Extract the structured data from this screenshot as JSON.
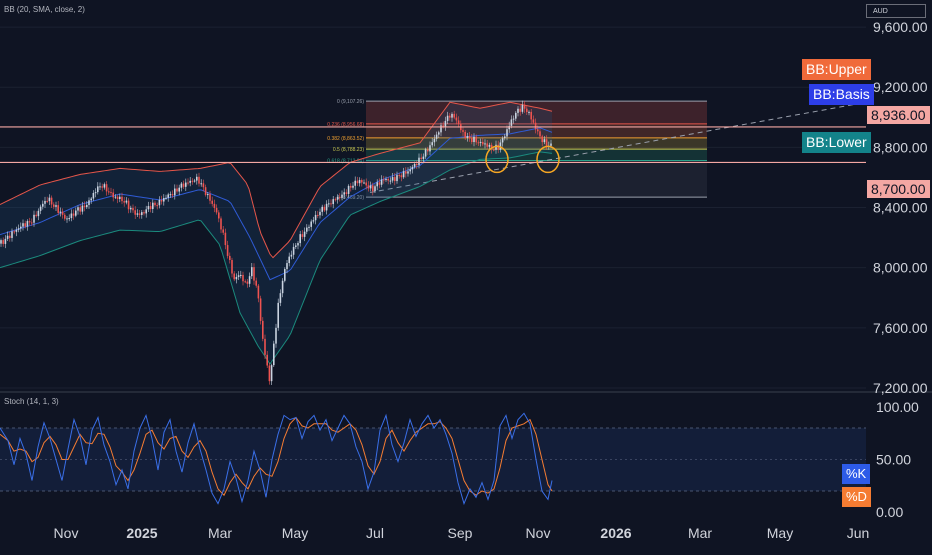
{
  "indicators": {
    "bb_label": "BB (20, SMA, close, 2)",
    "stoch_label": "Stoch (14, 1, 3)",
    "currency": "AUD"
  },
  "legend": {
    "upper": "BB:Upper",
    "basis": "BB:Basis",
    "lower": "BB:Lower",
    "k": "%K",
    "d": "%D"
  },
  "price_tags": {
    "level_high": "8,936.00",
    "level_low": "8,700.00"
  },
  "colors": {
    "background": "#0f1423",
    "upper_band": "#e5564a",
    "basis": "#2f5bd6",
    "lower_band": "#1b8a7d",
    "candle_up": "#c9d3e0",
    "candle_down": "#ef5350",
    "stoch_k": "#3a6fe8",
    "stoch_d": "#f57c32",
    "level_line": "#f4a7a3",
    "highlight_circle": "#f5a623"
  },
  "chart_data": {
    "type": "candlestick",
    "price_axis": {
      "ticks": [
        "9,600.00",
        "9,200.00",
        "8,800.00",
        "8,400.00",
        "8,000.00",
        "7,600.00",
        "7,200.00"
      ],
      "tick_values": [
        9600,
        9200,
        8800,
        8400,
        8000,
        7600,
        7200
      ],
      "range": [
        7180,
        9780
      ]
    },
    "time_axis": {
      "labels": [
        "Nov",
        "2025",
        "Mar",
        "May",
        "Jul",
        "Sep",
        "Nov",
        "2026",
        "Mar",
        "May",
        "Jun"
      ],
      "bold": [
        false,
        true,
        false,
        false,
        false,
        false,
        false,
        true,
        false,
        false,
        false
      ]
    },
    "horizontal_levels": [
      8936,
      8700
    ],
    "price_path": [
      [
        0,
        8160
      ],
      [
        6,
        8190
      ],
      [
        12,
        8230
      ],
      [
        18,
        8260
      ],
      [
        24,
        8290
      ],
      [
        30,
        8300
      ],
      [
        36,
        8350
      ],
      [
        42,
        8420
      ],
      [
        48,
        8460
      ],
      [
        54,
        8410
      ],
      [
        60,
        8370
      ],
      [
        66,
        8320
      ],
      [
        72,
        8350
      ],
      [
        78,
        8390
      ],
      [
        84,
        8400
      ],
      [
        90,
        8450
      ],
      [
        96,
        8520
      ],
      [
        102,
        8550
      ],
      [
        108,
        8510
      ],
      [
        114,
        8470
      ],
      [
        120,
        8460
      ],
      [
        126,
        8430
      ],
      [
        132,
        8380
      ],
      [
        138,
        8350
      ],
      [
        144,
        8370
      ],
      [
        150,
        8410
      ],
      [
        156,
        8420
      ],
      [
        162,
        8450
      ],
      [
        168,
        8480
      ],
      [
        174,
        8500
      ],
      [
        180,
        8540
      ],
      [
        186,
        8560
      ],
      [
        192,
        8580
      ],
      [
        198,
        8590
      ],
      [
        204,
        8520
      ],
      [
        210,
        8450
      ],
      [
        216,
        8380
      ],
      [
        222,
        8250
      ],
      [
        228,
        8080
      ],
      [
        234,
        7920
      ],
      [
        240,
        7960
      ],
      [
        246,
        7880
      ],
      [
        252,
        7990
      ],
      [
        258,
        7820
      ],
      [
        262,
        7560
      ],
      [
        266,
        7380
      ],
      [
        270,
        7240
      ],
      [
        274,
        7500
      ],
      [
        278,
        7740
      ],
      [
        282,
        7900
      ],
      [
        286,
        8020
      ],
      [
        290,
        8080
      ],
      [
        294,
        8130
      ],
      [
        300,
        8200
      ],
      [
        306,
        8250
      ],
      [
        312,
        8310
      ],
      [
        318,
        8360
      ],
      [
        324,
        8400
      ],
      [
        330,
        8430
      ],
      [
        336,
        8460
      ],
      [
        342,
        8480
      ],
      [
        348,
        8520
      ],
      [
        354,
        8560
      ],
      [
        360,
        8580
      ],
      [
        366,
        8550
      ],
      [
        372,
        8520
      ],
      [
        378,
        8560
      ],
      [
        384,
        8590
      ],
      [
        390,
        8580
      ],
      [
        396,
        8600
      ],
      [
        402,
        8620
      ],
      [
        408,
        8640
      ],
      [
        414,
        8680
      ],
      [
        420,
        8720
      ],
      [
        426,
        8770
      ],
      [
        432,
        8830
      ],
      [
        438,
        8900
      ],
      [
        444,
        8960
      ],
      [
        450,
        9020
      ],
      [
        456,
        8990
      ],
      [
        462,
        8900
      ],
      [
        468,
        8860
      ],
      [
        474,
        8850
      ],
      [
        480,
        8830
      ],
      [
        486,
        8820
      ],
      [
        492,
        8790
      ],
      [
        498,
        8800
      ],
      [
        504,
        8870
      ],
      [
        510,
        8960
      ],
      [
        516,
        9030
      ],
      [
        522,
        9070
      ],
      [
        528,
        9040
      ],
      [
        534,
        8950
      ],
      [
        540,
        8870
      ],
      [
        546,
        8820
      ],
      [
        552,
        8810
      ]
    ],
    "bands": {
      "upper": [
        [
          0,
          8420
        ],
        [
          40,
          8550
        ],
        [
          80,
          8620
        ],
        [
          120,
          8660
        ],
        [
          160,
          8640
        ],
        [
          200,
          8660
        ],
        [
          230,
          8700
        ],
        [
          248,
          8550
        ],
        [
          260,
          8240
        ],
        [
          272,
          8060
        ],
        [
          290,
          8180
        ],
        [
          320,
          8540
        ],
        [
          350,
          8700
        ],
        [
          380,
          8760
        ],
        [
          420,
          8830
        ],
        [
          450,
          9100
        ],
        [
          480,
          9060
        ],
        [
          510,
          9100
        ],
        [
          540,
          9060
        ],
        [
          552,
          9040
        ]
      ],
      "basis": [
        [
          0,
          8220
        ],
        [
          40,
          8300
        ],
        [
          80,
          8420
        ],
        [
          120,
          8490
        ],
        [
          160,
          8450
        ],
        [
          200,
          8520
        ],
        [
          230,
          8440
        ],
        [
          250,
          8200
        ],
        [
          270,
          7920
        ],
        [
          290,
          7980
        ],
        [
          320,
          8300
        ],
        [
          350,
          8470
        ],
        [
          380,
          8580
        ],
        [
          420,
          8680
        ],
        [
          450,
          8860
        ],
        [
          480,
          8880
        ],
        [
          510,
          8890
        ],
        [
          540,
          8930
        ],
        [
          552,
          8900
        ]
      ],
      "lower": [
        [
          0,
          8000
        ],
        [
          40,
          8080
        ],
        [
          80,
          8180
        ],
        [
          120,
          8250
        ],
        [
          160,
          8240
        ],
        [
          200,
          8320
        ],
        [
          220,
          8150
        ],
        [
          240,
          7700
        ],
        [
          258,
          7480
        ],
        [
          270,
          7360
        ],
        [
          290,
          7550
        ],
        [
          320,
          8050
        ],
        [
          350,
          8350
        ],
        [
          380,
          8440
        ],
        [
          420,
          8540
        ],
        [
          450,
          8650
        ],
        [
          480,
          8720
        ],
        [
          510,
          8730
        ],
        [
          540,
          8770
        ],
        [
          552,
          8760
        ]
      ]
    },
    "fibonacci": [
      {
        "ratio": "0",
        "label": "0 (9,107.26)",
        "value": 9107.26
      },
      {
        "ratio": "0.236",
        "label": "0.236 (8,956.68)",
        "value": 8956.68
      },
      {
        "ratio": "0.382",
        "label": "0.382 (8,863.52)",
        "value": 8863.52
      },
      {
        "ratio": "0.5",
        "label": "0.5 (8,788.23)",
        "value": 8788.23
      },
      {
        "ratio": "0.618",
        "label": "0.618 (8,712.94)",
        "value": 8712.94
      },
      {
        "ratio": "1",
        "label": "1 (8,469.20)",
        "value": 8469.2
      }
    ],
    "stochastic": {
      "ticks": [
        "100.00",
        "50.00",
        "0.00"
      ],
      "tick_values": [
        100,
        50,
        0
      ],
      "overbought": 80,
      "oversold": 20,
      "k": [
        [
          0,
          80
        ],
        [
          8,
          68
        ],
        [
          14,
          45
        ],
        [
          20,
          70
        ],
        [
          26,
          55
        ],
        [
          32,
          30
        ],
        [
          38,
          62
        ],
        [
          44,
          85
        ],
        [
          50,
          70
        ],
        [
          56,
          50
        ],
        [
          62,
          30
        ],
        [
          68,
          60
        ],
        [
          74,
          88
        ],
        [
          80,
          72
        ],
        [
          86,
          45
        ],
        [
          92,
          78
        ],
        [
          98,
          90
        ],
        [
          104,
          64
        ],
        [
          110,
          48
        ],
        [
          116,
          26
        ],
        [
          122,
          40
        ],
        [
          128,
          22
        ],
        [
          134,
          58
        ],
        [
          140,
          80
        ],
        [
          146,
          92
        ],
        [
          152,
          70
        ],
        [
          158,
          40
        ],
        [
          164,
          76
        ],
        [
          170,
          88
        ],
        [
          176,
          58
        ],
        [
          182,
          38
        ],
        [
          188,
          66
        ],
        [
          194,
          84
        ],
        [
          200,
          60
        ],
        [
          206,
          40
        ],
        [
          212,
          18
        ],
        [
          218,
          8
        ],
        [
          224,
          22
        ],
        [
          230,
          48
        ],
        [
          236,
          32
        ],
        [
          242,
          10
        ],
        [
          248,
          30
        ],
        [
          254,
          58
        ],
        [
          260,
          40
        ],
        [
          266,
          14
        ],
        [
          272,
          50
        ],
        [
          278,
          74
        ],
        [
          284,
          92
        ],
        [
          290,
          88
        ],
        [
          296,
          90
        ],
        [
          302,
          70
        ],
        [
          308,
          86
        ],
        [
          314,
          92
        ],
        [
          320,
          78
        ],
        [
          326,
          88
        ],
        [
          332,
          68
        ],
        [
          338,
          80
        ],
        [
          344,
          92
        ],
        [
          350,
          84
        ],
        [
          356,
          62
        ],
        [
          362,
          48
        ],
        [
          368,
          22
        ],
        [
          374,
          38
        ],
        [
          380,
          78
        ],
        [
          386,
          92
        ],
        [
          392,
          64
        ],
        [
          398,
          48
        ],
        [
          404,
          66
        ],
        [
          410,
          88
        ],
        [
          416,
          72
        ],
        [
          422,
          84
        ],
        [
          428,
          92
        ],
        [
          434,
          80
        ],
        [
          440,
          88
        ],
        [
          446,
          74
        ],
        [
          452,
          56
        ],
        [
          458,
          28
        ],
        [
          464,
          8
        ],
        [
          470,
          22
        ],
        [
          476,
          14
        ],
        [
          482,
          28
        ],
        [
          488,
          12
        ],
        [
          494,
          30
        ],
        [
          500,
          82
        ],
        [
          506,
          92
        ],
        [
          512,
          70
        ],
        [
          518,
          88
        ],
        [
          524,
          94
        ],
        [
          530,
          84
        ],
        [
          536,
          50
        ],
        [
          542,
          20
        ],
        [
          548,
          12
        ],
        [
          552,
          30
        ]
      ],
      "d": [
        [
          0,
          74
        ],
        [
          8,
          68
        ],
        [
          14,
          58
        ],
        [
          20,
          60
        ],
        [
          26,
          58
        ],
        [
          32,
          48
        ],
        [
          38,
          52
        ],
        [
          44,
          66
        ],
        [
          50,
          72
        ],
        [
          56,
          64
        ],
        [
          62,
          50
        ],
        [
          68,
          50
        ],
        [
          74,
          62
        ],
        [
          80,
          74
        ],
        [
          86,
          66
        ],
        [
          92,
          65
        ],
        [
          98,
          75
        ],
        [
          104,
          74
        ],
        [
          110,
          62
        ],
        [
          116,
          44
        ],
        [
          122,
          38
        ],
        [
          128,
          30
        ],
        [
          134,
          40
        ],
        [
          140,
          56
        ],
        [
          146,
          74
        ],
        [
          152,
          78
        ],
        [
          158,
          66
        ],
        [
          164,
          60
        ],
        [
          170,
          70
        ],
        [
          176,
          72
        ],
        [
          182,
          58
        ],
        [
          188,
          52
        ],
        [
          194,
          62
        ],
        [
          200,
          68
        ],
        [
          206,
          58
        ],
        [
          212,
          38
        ],
        [
          218,
          22
        ],
        [
          224,
          16
        ],
        [
          230,
          28
        ],
        [
          236,
          36
        ],
        [
          242,
          28
        ],
        [
          248,
          22
        ],
        [
          254,
          34
        ],
        [
          260,
          42
        ],
        [
          266,
          36
        ],
        [
          272,
          34
        ],
        [
          278,
          48
        ],
        [
          284,
          70
        ],
        [
          290,
          84
        ],
        [
          296,
          90
        ],
        [
          302,
          82
        ],
        [
          308,
          80
        ],
        [
          314,
          84
        ],
        [
          320,
          84
        ],
        [
          326,
          84
        ],
        [
          332,
          78
        ],
        [
          338,
          76
        ],
        [
          344,
          80
        ],
        [
          350,
          84
        ],
        [
          356,
          78
        ],
        [
          362,
          64
        ],
        [
          368,
          44
        ],
        [
          374,
          36
        ],
        [
          380,
          48
        ],
        [
          386,
          70
        ],
        [
          392,
          78
        ],
        [
          398,
          66
        ],
        [
          404,
          58
        ],
        [
          410,
          68
        ],
        [
          416,
          76
        ],
        [
          422,
          80
        ],
        [
          428,
          84
        ],
        [
          434,
          84
        ],
        [
          440,
          86
        ],
        [
          446,
          80
        ],
        [
          452,
          70
        ],
        [
          458,
          50
        ],
        [
          464,
          30
        ],
        [
          470,
          20
        ],
        [
          476,
          16
        ],
        [
          482,
          20
        ],
        [
          488,
          18
        ],
        [
          494,
          22
        ],
        [
          500,
          42
        ],
        [
          506,
          68
        ],
        [
          512,
          80
        ],
        [
          518,
          82
        ],
        [
          524,
          84
        ],
        [
          530,
          88
        ],
        [
          536,
          74
        ],
        [
          542,
          50
        ],
        [
          548,
          26
        ],
        [
          552,
          20
        ]
      ]
    }
  }
}
